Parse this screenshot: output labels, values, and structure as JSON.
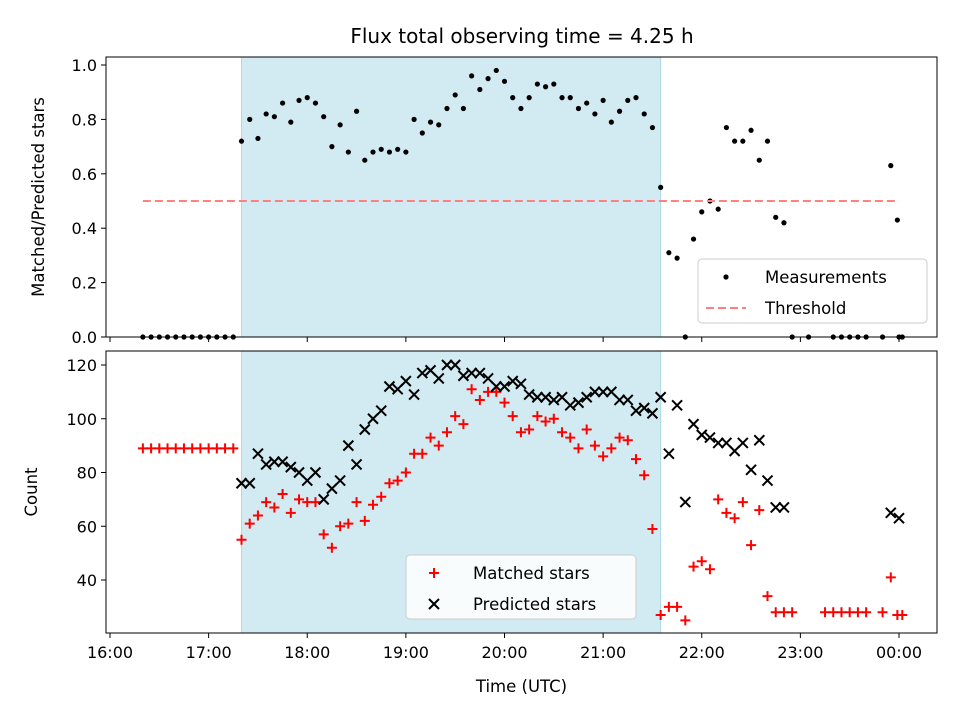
{
  "title": "Flux total observing time = 4.25 h",
  "colors": {
    "shade": "#add8e6",
    "threshold": "#ff8080",
    "matched": "#ff0000",
    "predicted": "#000000",
    "measurements": "#000000"
  },
  "chart_data": [
    {
      "type": "scatter",
      "ylabel": "Matched/Predicted stars",
      "ylim": [
        0,
        1.04
      ],
      "yticks": [
        0.0,
        0.2,
        0.4,
        0.6,
        0.8,
        1.0
      ],
      "ytick_labels": [
        "0.0",
        "0.2",
        "0.4",
        "0.6",
        "0.8",
        "1.0"
      ],
      "xlim": [
        "16:00",
        "00:00"
      ],
      "shaded_interval": [
        "17:20",
        "21:35"
      ],
      "legend": {
        "placement": "lower right",
        "entries": [
          "Measurements",
          "Threshold"
        ]
      },
      "series": [
        {
          "name": "Measurements",
          "marker": "dot",
          "x": [
            "16:20",
            "16:25",
            "16:30",
            "16:35",
            "16:40",
            "16:45",
            "16:50",
            "16:55",
            "17:00",
            "17:05",
            "17:10",
            "17:15",
            "17:20",
            "17:25",
            "17:30",
            "17:35",
            "17:40",
            "17:45",
            "17:50",
            "17:55",
            "18:00",
            "18:05",
            "18:10",
            "18:15",
            "18:20",
            "18:25",
            "18:30",
            "18:35",
            "18:40",
            "18:45",
            "18:50",
            "18:55",
            "19:00",
            "19:05",
            "19:10",
            "19:15",
            "19:20",
            "19:25",
            "19:30",
            "19:35",
            "19:40",
            "19:45",
            "19:50",
            "19:55",
            "20:00",
            "20:05",
            "20:10",
            "20:15",
            "20:20",
            "20:25",
            "20:30",
            "20:35",
            "20:40",
            "20:45",
            "20:50",
            "20:55",
            "21:00",
            "21:05",
            "21:10",
            "21:15",
            "21:20",
            "21:25",
            "21:30",
            "21:35",
            "21:40",
            "21:45",
            "21:50",
            "21:55",
            "22:00",
            "22:05",
            "22:10",
            "22:15",
            "22:20",
            "22:25",
            "22:30",
            "22:35",
            "22:40",
            "22:45",
            "22:50",
            "22:55",
            "23:05",
            "23:20",
            "23:25",
            "23:30",
            "23:35",
            "23:40",
            "23:50",
            "23:55",
            "23:59",
            "00:00",
            "00:02"
          ],
          "y": [
            0,
            0,
            0,
            0,
            0,
            0,
            0,
            0,
            0,
            0,
            0,
            0,
            0.72,
            0.8,
            0.73,
            0.82,
            0.81,
            0.86,
            0.79,
            0.87,
            0.88,
            0.86,
            0.81,
            0.7,
            0.78,
            0.68,
            0.83,
            0.65,
            0.68,
            0.69,
            0.68,
            0.69,
            0.68,
            0.8,
            0.75,
            0.79,
            0.78,
            0.84,
            0.89,
            0.84,
            0.96,
            0.91,
            0.95,
            0.98,
            0.94,
            0.88,
            0.84,
            0.88,
            0.93,
            0.92,
            0.93,
            0.88,
            0.88,
            0.84,
            0.86,
            0.82,
            0.87,
            0.79,
            0.83,
            0.87,
            0.88,
            0.82,
            0.77,
            0.55,
            0.31,
            0.29,
            0,
            0.36,
            0.46,
            0.5,
            0.47,
            0.77,
            0.72,
            0.72,
            0.76,
            0.65,
            0.72,
            0.44,
            0.42,
            0,
            0,
            0,
            0,
            0,
            0,
            0,
            0,
            0.63,
            0.43,
            0,
            0
          ]
        },
        {
          "name": "Threshold",
          "style": "dashed",
          "x": [
            "16:20",
            "00:00"
          ],
          "y": [
            0.5,
            0.5
          ]
        }
      ]
    },
    {
      "type": "scatter",
      "ylabel": "Count",
      "xlabel": "Time (UTC)",
      "ylim": [
        21,
        125
      ],
      "yticks": [
        40,
        60,
        80,
        100,
        120
      ],
      "ytick_labels": [
        "40",
        "60",
        "80",
        "100",
        "120"
      ],
      "xlim": [
        "16:00",
        "00:00"
      ],
      "xticks": [
        "16:00",
        "17:00",
        "18:00",
        "19:00",
        "20:00",
        "21:00",
        "22:00",
        "23:00",
        "00:00"
      ],
      "xtick_labels": [
        "16:00",
        "17:00",
        "18:00",
        "19:00",
        "20:00",
        "21:00",
        "22:00",
        "23:00",
        "00:00"
      ],
      "shaded_interval": [
        "17:20",
        "21:35"
      ],
      "legend": {
        "placement": "lower center",
        "entries": [
          "Matched stars",
          "Predicted stars"
        ]
      },
      "series": [
        {
          "name": "Matched stars",
          "marker": "plus",
          "x": [
            "16:20",
            "16:25",
            "16:30",
            "16:35",
            "16:40",
            "16:45",
            "16:50",
            "16:55",
            "17:00",
            "17:05",
            "17:10",
            "17:15",
            "17:20",
            "17:25",
            "17:30",
            "17:35",
            "17:40",
            "17:45",
            "17:50",
            "17:55",
            "18:00",
            "18:05",
            "18:10",
            "18:15",
            "18:20",
            "18:25",
            "18:30",
            "18:35",
            "18:40",
            "18:45",
            "18:50",
            "18:55",
            "19:00",
            "19:05",
            "19:10",
            "19:15",
            "19:20",
            "19:25",
            "19:30",
            "19:35",
            "19:40",
            "19:45",
            "19:50",
            "19:55",
            "20:00",
            "20:05",
            "20:10",
            "20:15",
            "20:20",
            "20:25",
            "20:30",
            "20:35",
            "20:40",
            "20:45",
            "20:50",
            "20:55",
            "21:00",
            "21:05",
            "21:10",
            "21:15",
            "21:20",
            "21:25",
            "21:30",
            "21:35",
            "21:40",
            "21:45",
            "21:50",
            "21:55",
            "22:00",
            "22:05",
            "22:10",
            "22:15",
            "22:20",
            "22:25",
            "22:30",
            "22:35",
            "22:40",
            "22:45",
            "22:50",
            "22:55",
            "23:15",
            "23:20",
            "23:25",
            "23:30",
            "23:35",
            "23:40",
            "23:50",
            "23:55",
            "23:59",
            "00:02"
          ],
          "y": [
            89,
            89,
            89,
            89,
            89,
            89,
            89,
            89,
            89,
            89,
            89,
            89,
            55,
            61,
            64,
            69,
            67,
            72,
            65,
            70,
            69,
            69,
            57,
            52,
            60,
            61,
            69,
            62,
            68,
            71,
            76,
            77,
            80,
            87,
            87,
            93,
            90,
            95,
            101,
            98,
            111,
            107,
            110,
            110,
            106,
            101,
            95,
            96,
            101,
            99,
            100,
            95,
            93,
            89,
            96,
            90,
            86,
            89,
            93,
            92,
            85,
            79,
            59,
            27,
            30,
            30,
            25,
            45,
            47,
            44,
            70,
            65,
            63,
            69,
            53,
            66,
            34,
            28,
            28,
            28,
            28,
            28,
            28,
            28,
            28,
            28,
            28,
            41,
            27,
            27
          ],
          "note_ignore": ""
        },
        {
          "name": "Predicted stars",
          "marker": "x",
          "x": [
            "17:20",
            "17:25",
            "17:30",
            "17:35",
            "17:40",
            "17:45",
            "17:50",
            "17:55",
            "18:00",
            "18:05",
            "18:10",
            "18:15",
            "18:20",
            "18:25",
            "18:30",
            "18:35",
            "18:40",
            "18:45",
            "18:50",
            "18:55",
            "19:00",
            "19:05",
            "19:10",
            "19:15",
            "19:20",
            "19:25",
            "19:30",
            "19:35",
            "19:40",
            "19:45",
            "19:50",
            "19:55",
            "20:00",
            "20:05",
            "20:10",
            "20:15",
            "20:20",
            "20:25",
            "20:30",
            "20:35",
            "20:40",
            "20:45",
            "20:50",
            "20:55",
            "21:00",
            "21:05",
            "21:10",
            "21:15",
            "21:20",
            "21:25",
            "21:30",
            "21:35",
            "21:40",
            "21:45",
            "21:50",
            "21:55",
            "22:00",
            "22:05",
            "22:10",
            "22:15",
            "22:20",
            "22:25",
            "22:30",
            "22:35",
            "22:40",
            "22:45",
            "22:50",
            "23:55",
            "00:00"
          ],
          "y": [
            76,
            76,
            87,
            83,
            84,
            84,
            82,
            80,
            77,
            80,
            70,
            74,
            77,
            90,
            83,
            96,
            100,
            103,
            112,
            111,
            114,
            109,
            117,
            118,
            115,
            120,
            120,
            116,
            117,
            117,
            115,
            112,
            112,
            114,
            113,
            109,
            108,
            108,
            107,
            108,
            105,
            106,
            108,
            110,
            110,
            110,
            107,
            107,
            103,
            104,
            102,
            108,
            87,
            105,
            69,
            98,
            94,
            93,
            91,
            91,
            88,
            91,
            81,
            92,
            77,
            67,
            67,
            65,
            63
          ]
        }
      ]
    }
  ]
}
